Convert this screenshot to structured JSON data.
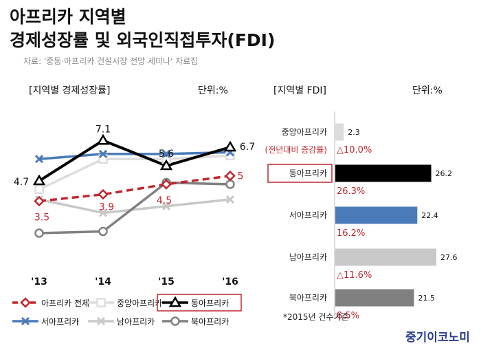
{
  "title_line1": "아프리카 지역별",
  "title_line2": "경제성장률 및 외국인직접투자(FDI)",
  "source": "자료: '중동·아프리카 건설시장 전망 세미나' 자료집",
  "footnote": "*2015년 건수기준",
  "brand": "중기이코노미",
  "colors": {
    "accent_red": "#c0272d",
    "west_blue": "#4a7ab8",
    "east_black": "#000000",
    "central_gray": "#dddddd",
    "south_gray": "#c8c8c8",
    "north_gray": "#808080"
  },
  "chart_data": [
    {
      "type": "line",
      "title": "[지역별 경제성장률]",
      "unit": "단위:%",
      "categories": [
        "'13",
        "'14",
        "'15",
        "'16"
      ],
      "series": [
        {
          "name": "아프리카 전체",
          "values": [
            3.5,
            3.9,
            4.5,
            5
          ],
          "labels": [
            "3.5",
            "3.9",
            "4.5",
            "5"
          ],
          "color": "#c0272d",
          "marker": "diamond",
          "dashed": true
        },
        {
          "name": "중앙아프리카",
          "values": [
            4.2,
            6.0,
            6.0,
            6.2
          ],
          "color": "#dddddd",
          "marker": "square"
        },
        {
          "name": "동아프리카",
          "values": [
            4.7,
            7.1,
            5.6,
            6.7
          ],
          "labels": [
            "4.7",
            "7.1",
            "5.6",
            "6.7"
          ],
          "color": "#000000",
          "marker": "triangle"
        },
        {
          "name": "서아프리카",
          "values": [
            6.0,
            6.3,
            6.3,
            6.4
          ],
          "color": "#4a7ab8",
          "marker": "x"
        },
        {
          "name": "남아프리카",
          "values": [
            3.6,
            2.8,
            3.2,
            3.6
          ],
          "color": "#c8c8c8",
          "marker": "x"
        },
        {
          "name": "북아프리카",
          "values": [
            1.6,
            1.7,
            4.6,
            4.5
          ],
          "color": "#808080",
          "marker": "circle"
        }
      ]
    },
    {
      "type": "bar",
      "title": "[지역별 FDI]",
      "unit": "단위:%",
      "note": "(전년대비 증감률)",
      "categories": [
        "중앙아프리카",
        "동아프리카",
        "서아프리카",
        "남아프리카",
        "북아프리카"
      ],
      "values": [
        2.3,
        26.2,
        22.4,
        27.6,
        21.5
      ],
      "changes": [
        "△10.0%",
        "26.3%",
        "16.2%",
        "△11.6%",
        "8.5%"
      ],
      "colors": [
        "#dcdcdc",
        "#000000",
        "#4a7ab8",
        "#c8c8c8",
        "#808080"
      ],
      "highlighted": "동아프리카"
    }
  ]
}
